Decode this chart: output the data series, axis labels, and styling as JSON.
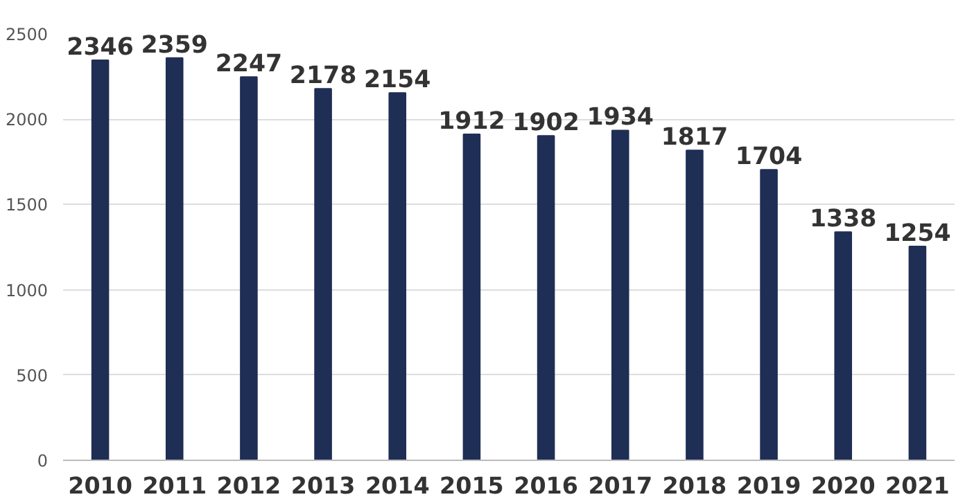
{
  "chart_data": {
    "type": "bar",
    "categories": [
      "2010",
      "2011",
      "2012",
      "2013",
      "2014",
      "2015",
      "2016",
      "2017",
      "2018",
      "2019",
      "2020",
      "2021"
    ],
    "values": [
      2346,
      2359,
      2247,
      2178,
      2154,
      1912,
      1902,
      1934,
      1817,
      1704,
      1338,
      1254
    ],
    "color": "#1f2e55",
    "ylim": [
      0,
      2500
    ],
    "yticks": [
      0,
      500,
      1000,
      1500,
      2000,
      2500
    ],
    "grid": "y",
    "data_labels": true
  }
}
